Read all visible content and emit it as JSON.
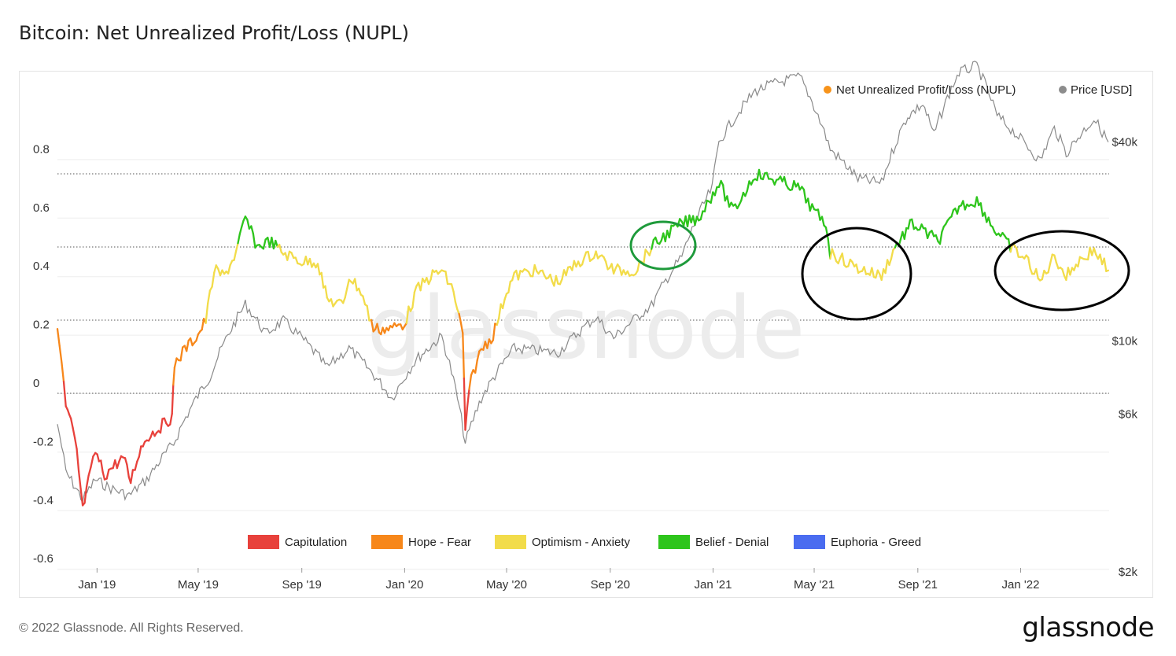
{
  "title": "Bitcoin: Net Unrealized Profit/Loss (NUPL)",
  "footer": {
    "copyright": "© 2022 Glassnode. All Rights Reserved.",
    "logo": "glassnode"
  },
  "watermark": "glassnode",
  "chart_data": {
    "type": "line",
    "title": "Bitcoin: Net Unrealized Profit/Loss (NUPL)",
    "x_ticks": [
      "Jan '19",
      "May '19",
      "Sep '19",
      "Jan '20",
      "May '20",
      "Sep '20",
      "Jan '21",
      "May '21",
      "Sep '21",
      "Jan '22"
    ],
    "y_left_ticks": [
      "0.8",
      "0.6",
      "0.4",
      "0.2",
      "0",
      "-0.2",
      "-0.4",
      "-0.6"
    ],
    "y_left_range": [
      -0.6,
      0.85
    ],
    "y_right_ticks": [
      "$40k",
      "$10k",
      "$6k",
      "$2k"
    ],
    "y_right_scale": "log",
    "top_legend": [
      {
        "label": "Net Unrealized Profit/Loss (NUPL)",
        "color": "#f7931a"
      },
      {
        "label": "Price [USD]",
        "color": "#8c8c8c"
      }
    ],
    "zone_legend": [
      {
        "label": "Capitulation",
        "color": "#e8413b"
      },
      {
        "label": "Hope - Fear",
        "color": "#f7871a"
      },
      {
        "label": "Optimism - Anxiety",
        "color": "#f2dc4a"
      },
      {
        "label": "Belief - Denial",
        "color": "#2ec51c"
      },
      {
        "label": "Euphoria - Greed",
        "color": "#4a6cf0"
      }
    ],
    "zone_thresholds": [
      0,
      0.25,
      0.5,
      0.75
    ],
    "series": [
      {
        "name": "Net Unrealized Profit/Loss (NUPL)",
        "points": [
          [
            "2018-11-15",
            0.22
          ],
          [
            "2018-11-20",
            0.1
          ],
          [
            "2018-11-25",
            -0.05
          ],
          [
            "2018-12-01",
            -0.1
          ],
          [
            "2018-12-08",
            -0.2
          ],
          [
            "2018-12-15",
            -0.4
          ],
          [
            "2018-12-22",
            -0.3
          ],
          [
            "2018-12-30",
            -0.2
          ],
          [
            "2019-01-10",
            -0.28
          ],
          [
            "2019-01-20",
            -0.25
          ],
          [
            "2019-02-01",
            -0.22
          ],
          [
            "2019-02-10",
            -0.3
          ],
          [
            "2019-02-20",
            -0.2
          ],
          [
            "2019-03-01",
            -0.15
          ],
          [
            "2019-03-15",
            -0.12
          ],
          [
            "2019-03-31",
            -0.08
          ],
          [
            "2019-04-03",
            0.1
          ],
          [
            "2019-04-15",
            0.15
          ],
          [
            "2019-05-01",
            0.2
          ],
          [
            "2019-05-10",
            0.25
          ],
          [
            "2019-05-20",
            0.42
          ],
          [
            "2019-06-01",
            0.4
          ],
          [
            "2019-06-15",
            0.48
          ],
          [
            "2019-06-26",
            0.6
          ],
          [
            "2019-07-10",
            0.5
          ],
          [
            "2019-07-25",
            0.52
          ],
          [
            "2019-08-10",
            0.48
          ],
          [
            "2019-09-01",
            0.45
          ],
          [
            "2019-09-20",
            0.45
          ],
          [
            "2019-10-01",
            0.32
          ],
          [
            "2019-10-20",
            0.3
          ],
          [
            "2019-10-27",
            0.4
          ],
          [
            "2019-11-10",
            0.35
          ],
          [
            "2019-11-25",
            0.22
          ],
          [
            "2019-12-15",
            0.22
          ],
          [
            "2020-01-01",
            0.24
          ],
          [
            "2020-01-15",
            0.35
          ],
          [
            "2020-02-01",
            0.4
          ],
          [
            "2020-02-14",
            0.42
          ],
          [
            "2020-02-28",
            0.35
          ],
          [
            "2020-03-10",
            0.2
          ],
          [
            "2020-03-13",
            -0.12
          ],
          [
            "2020-03-20",
            0.05
          ],
          [
            "2020-04-01",
            0.15
          ],
          [
            "2020-04-15",
            0.2
          ],
          [
            "2020-05-01",
            0.35
          ],
          [
            "2020-05-10",
            0.4
          ],
          [
            "2020-06-01",
            0.42
          ],
          [
            "2020-07-01",
            0.38
          ],
          [
            "2020-07-25",
            0.45
          ],
          [
            "2020-08-15",
            0.48
          ],
          [
            "2020-09-05",
            0.42
          ],
          [
            "2020-10-01",
            0.42
          ],
          [
            "2020-10-20",
            0.5
          ],
          [
            "2020-11-10",
            0.55
          ],
          [
            "2020-11-25",
            0.58
          ],
          [
            "2020-12-15",
            0.6
          ],
          [
            "2021-01-08",
            0.72
          ],
          [
            "2021-01-25",
            0.62
          ],
          [
            "2021-02-20",
            0.75
          ],
          [
            "2021-03-15",
            0.73
          ],
          [
            "2021-04-14",
            0.7
          ],
          [
            "2021-05-01",
            0.62
          ],
          [
            "2021-05-15",
            0.58
          ],
          [
            "2021-05-20",
            0.48
          ],
          [
            "2021-06-20",
            0.43
          ],
          [
            "2021-07-20",
            0.4
          ],
          [
            "2021-08-05",
            0.5
          ],
          [
            "2021-08-25",
            0.58
          ],
          [
            "2021-09-10",
            0.55
          ],
          [
            "2021-09-25",
            0.52
          ],
          [
            "2021-10-20",
            0.64
          ],
          [
            "2021-11-10",
            0.66
          ],
          [
            "2021-12-01",
            0.56
          ],
          [
            "2021-12-20",
            0.5
          ],
          [
            "2022-01-10",
            0.45
          ],
          [
            "2022-01-24",
            0.38
          ],
          [
            "2022-02-10",
            0.47
          ],
          [
            "2022-02-24",
            0.4
          ],
          [
            "2022-03-10",
            0.45
          ],
          [
            "2022-03-29",
            0.49
          ],
          [
            "2022-04-15",
            0.42
          ]
        ]
      },
      {
        "name": "Price [USD]",
        "points": [
          [
            "2018-11-15",
            5600
          ],
          [
            "2018-11-25",
            4000
          ],
          [
            "2018-12-15",
            3300
          ],
          [
            "2018-12-30",
            3800
          ],
          [
            "2019-01-15",
            3600
          ],
          [
            "2019-02-08",
            3400
          ],
          [
            "2019-03-01",
            3800
          ],
          [
            "2019-04-02",
            4900
          ],
          [
            "2019-05-15",
            7800
          ],
          [
            "2019-06-26",
            12900
          ],
          [
            "2019-07-20",
            10500
          ],
          [
            "2019-08-10",
            11500
          ],
          [
            "2019-09-01",
            10200
          ],
          [
            "2019-10-01",
            8300
          ],
          [
            "2019-10-27",
            9500
          ],
          [
            "2019-12-17",
            6700
          ],
          [
            "2020-01-15",
            8800
          ],
          [
            "2020-02-14",
            10300
          ],
          [
            "2020-03-13",
            4900
          ],
          [
            "2020-04-01",
            6700
          ],
          [
            "2020-05-10",
            9500
          ],
          [
            "2020-07-01",
            9200
          ],
          [
            "2020-08-15",
            11800
          ],
          [
            "2020-09-05",
            10200
          ],
          [
            "2020-10-20",
            12800
          ],
          [
            "2020-11-25",
            18000
          ],
          [
            "2020-12-31",
            29000
          ],
          [
            "2021-01-08",
            40000
          ],
          [
            "2021-02-20",
            57000
          ],
          [
            "2021-03-13",
            60000
          ],
          [
            "2021-04-14",
            63000
          ],
          [
            "2021-05-20",
            38000
          ],
          [
            "2021-06-22",
            31000
          ],
          [
            "2021-07-20",
            30000
          ],
          [
            "2021-08-20",
            48000
          ],
          [
            "2021-09-07",
            52000
          ],
          [
            "2021-09-20",
            42000
          ],
          [
            "2021-10-20",
            65000
          ],
          [
            "2021-11-10",
            68000
          ],
          [
            "2021-12-04",
            48000
          ],
          [
            "2022-01-24",
            35000
          ],
          [
            "2022-02-10",
            44000
          ],
          [
            "2022-02-24",
            37000
          ],
          [
            "2022-03-29",
            47000
          ],
          [
            "2022-04-15",
            40000
          ]
        ]
      }
    ]
  }
}
